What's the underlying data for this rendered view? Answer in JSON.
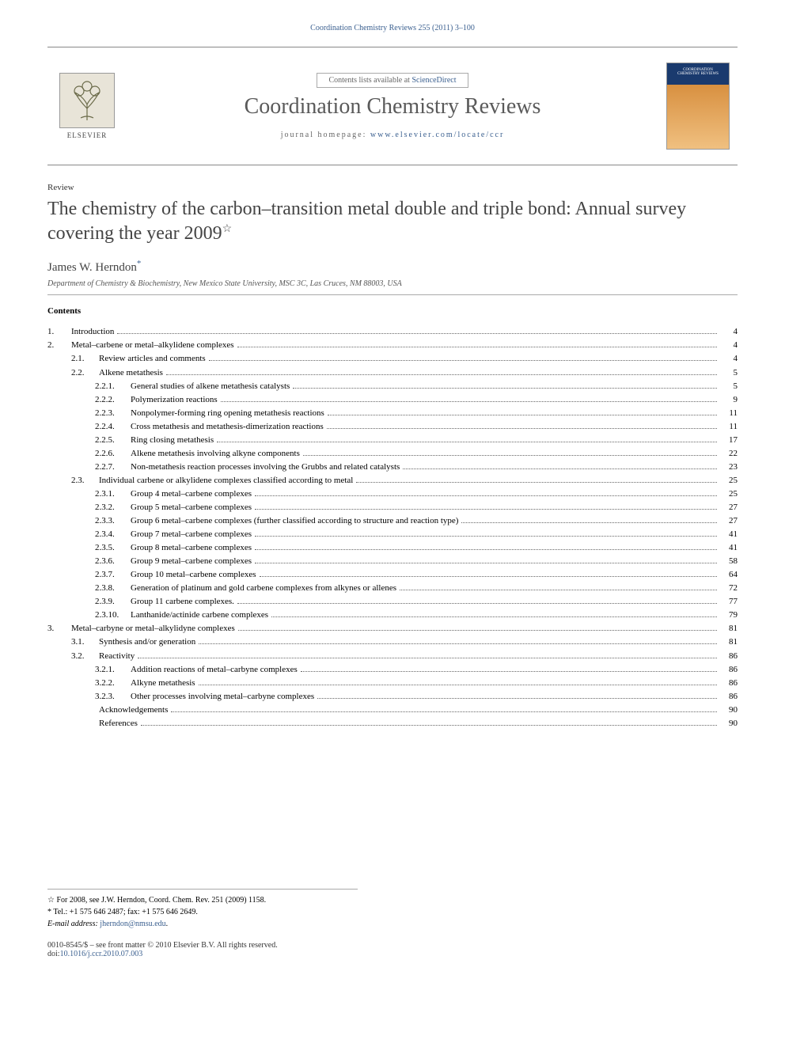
{
  "running_head": "Coordination Chemistry Reviews 255 (2011) 3–100",
  "masthead": {
    "contents_prefix": "Contents lists available at ",
    "contents_link": "ScienceDirect",
    "journal_title": "Coordination Chemistry Reviews",
    "homepage_prefix": "journal homepage: ",
    "homepage_link": "www.elsevier.com/locate/ccr",
    "publisher": "ELSEVIER",
    "cover_line1": "COORDINATION",
    "cover_line2": "CHEMISTRY REVIEWS"
  },
  "article_type": "Review",
  "title": "The chemistry of the carbon–transition metal double and triple bond: Annual survey covering the year 2009",
  "title_star": "☆",
  "author": "James W. Herndon",
  "author_mark": "*",
  "affiliation": "Department of Chemistry & Biochemistry, New Mexico State University, MSC 3C, Las Cruces, NM 88003, USA",
  "contents_label": "Contents",
  "toc": [
    {
      "lvl": 1,
      "num": "1.",
      "title": "Introduction",
      "page": "4"
    },
    {
      "lvl": 1,
      "num": "2.",
      "title": "Metal–carbene or metal–alkylidene complexes",
      "page": "4"
    },
    {
      "lvl": 2,
      "num": "2.1.",
      "title": "Review articles and comments",
      "page": "4"
    },
    {
      "lvl": 2,
      "num": "2.2.",
      "title": "Alkene metathesis",
      "page": "5"
    },
    {
      "lvl": 3,
      "num": "2.2.1.",
      "title": "General studies of alkene metathesis catalysts",
      "page": "5"
    },
    {
      "lvl": 3,
      "num": "2.2.2.",
      "title": "Polymerization reactions",
      "page": "9"
    },
    {
      "lvl": 3,
      "num": "2.2.3.",
      "title": "Nonpolymer-forming ring opening metathesis reactions",
      "page": "11"
    },
    {
      "lvl": 3,
      "num": "2.2.4.",
      "title": "Cross metathesis and metathesis-dimerization reactions",
      "page": "11"
    },
    {
      "lvl": 3,
      "num": "2.2.5.",
      "title": "Ring closing metathesis",
      "page": "17"
    },
    {
      "lvl": 3,
      "num": "2.2.6.",
      "title": "Alkene metathesis involving alkyne components",
      "page": "22"
    },
    {
      "lvl": 3,
      "num": "2.2.7.",
      "title": "Non-metathesis reaction processes involving the Grubbs and related catalysts",
      "page": "23"
    },
    {
      "lvl": 2,
      "num": "2.3.",
      "title": "Individual carbene or alkylidene complexes classified according to metal",
      "page": "25"
    },
    {
      "lvl": 3,
      "num": "2.3.1.",
      "title": "Group 4 metal–carbene complexes",
      "page": "25"
    },
    {
      "lvl": 3,
      "num": "2.3.2.",
      "title": "Group 5 metal–carbene complexes",
      "page": "27"
    },
    {
      "lvl": 3,
      "num": "2.3.3.",
      "title": "Group 6 metal–carbene complexes (further classified according to structure and reaction type)",
      "page": "27"
    },
    {
      "lvl": 3,
      "num": "2.3.4.",
      "title": "Group 7 metal–carbene complexes",
      "page": "41"
    },
    {
      "lvl": 3,
      "num": "2.3.5.",
      "title": "Group 8 metal–carbene complexes",
      "page": "41"
    },
    {
      "lvl": 3,
      "num": "2.3.6.",
      "title": "Group 9 metal–carbene complexes",
      "page": "58"
    },
    {
      "lvl": 3,
      "num": "2.3.7.",
      "title": "Group 10 metal–carbene complexes",
      "page": "64"
    },
    {
      "lvl": 3,
      "num": "2.3.8.",
      "title": "Generation of platinum and gold carbene complexes from alkynes or allenes",
      "page": "72"
    },
    {
      "lvl": 3,
      "num": "2.3.9.",
      "title": "Group 11 carbene complexes.",
      "page": "77"
    },
    {
      "lvl": 3,
      "num": "2.3.10.",
      "title": "Lanthanide/actinide carbene complexes",
      "page": "79"
    },
    {
      "lvl": 1,
      "num": "3.",
      "title": "Metal–carbyne or metal–alkylidyne complexes",
      "page": "81"
    },
    {
      "lvl": 2,
      "num": "3.1.",
      "title": "Synthesis and/or generation",
      "page": "81"
    },
    {
      "lvl": 2,
      "num": "3.2.",
      "title": "Reactivity",
      "page": "86"
    },
    {
      "lvl": 3,
      "num": "3.2.1.",
      "title": "Addition reactions of metal–carbyne complexes",
      "page": "86"
    },
    {
      "lvl": 3,
      "num": "3.2.2.",
      "title": "Alkyne metathesis",
      "page": "86"
    },
    {
      "lvl": 3,
      "num": "3.2.3.",
      "title": "Other processes involving metal–carbyne complexes",
      "page": "86"
    },
    {
      "lvl": 2,
      "num": "",
      "title": "Acknowledgements",
      "page": "90"
    },
    {
      "lvl": 2,
      "num": "",
      "title": "References",
      "page": "90"
    }
  ],
  "footnotes": {
    "star_note": "☆ For 2008, see J.W. Herndon, Coord. Chem. Rev. 251 (2009) 1158.",
    "corr_note": "* Tel.: +1 575 646 2487; fax: +1 575 646 2649.",
    "email_label": "E-mail address: ",
    "email": "jherndon@nmsu.edu",
    "email_suffix": "."
  },
  "footer": {
    "issn_line": "0010-8545/$ – see front matter © 2010 Elsevier B.V. All rights reserved.",
    "doi_label": "doi:",
    "doi": "10.1016/j.ccr.2010.07.003"
  },
  "colors": {
    "link": "#3a5f8f",
    "text": "#000000",
    "muted": "#666666",
    "title_gray": "#5a5a5a"
  }
}
